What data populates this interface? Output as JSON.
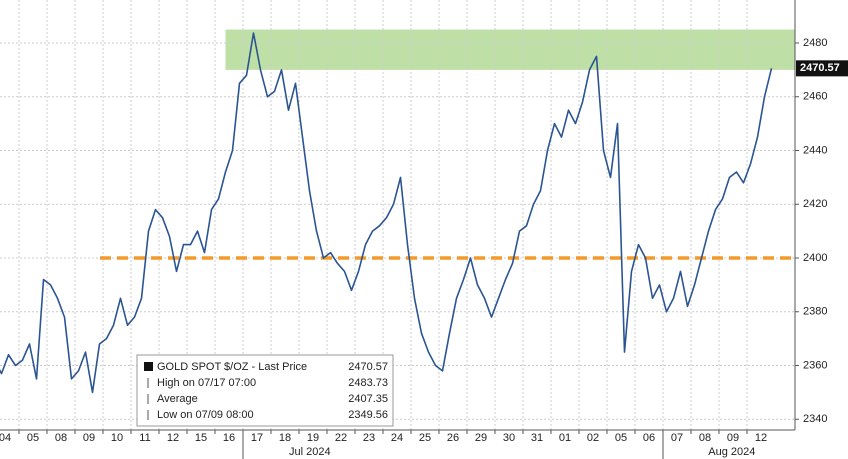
{
  "chart_data": {
    "type": "line",
    "categories": [
      "04",
      null,
      null,
      null,
      "05",
      null,
      null,
      null,
      "08",
      null,
      null,
      null,
      "09",
      null,
      null,
      null,
      "10",
      null,
      null,
      null,
      "11",
      null,
      null,
      null,
      "12",
      null,
      null,
      null,
      "15",
      null,
      null,
      null,
      "16",
      null,
      null,
      null,
      "17",
      null,
      null,
      null,
      "18",
      null,
      null,
      null,
      "19",
      null,
      null,
      null,
      "22",
      null,
      null,
      null,
      "23",
      null,
      null,
      null,
      "24",
      null,
      null,
      null,
      "25",
      null,
      null,
      null,
      "26",
      null,
      null,
      null,
      "29",
      null,
      null,
      null,
      "30",
      null,
      null,
      null,
      "31",
      null,
      null,
      null,
      "01",
      null,
      null,
      null,
      "02",
      null,
      null,
      null,
      "05",
      null,
      null,
      null,
      "06",
      null,
      null,
      null,
      "07",
      null,
      null,
      null,
      "08",
      null,
      null,
      null,
      "09",
      null,
      null,
      null,
      "12",
      null,
      null,
      null
    ],
    "months": [
      {
        "label": "Jul 2024",
        "at": 36
      },
      {
        "label": "Aug 2024",
        "at": 96
      }
    ],
    "series": [
      {
        "name": "GOLD SPOT $/OZ - Last Price",
        "color": "#2b5592",
        "values": [
          2362,
          2357,
          2364,
          2360,
          2362,
          2368,
          2355,
          2392,
          2390,
          2385,
          2378,
          2355,
          2358,
          2365,
          2350,
          2368,
          2370,
          2375,
          2385,
          2375,
          2378,
          2385,
          2410,
          2418,
          2415,
          2408,
          2395,
          2405,
          2405,
          2410,
          2402,
          2418,
          2422,
          2432,
          2440,
          2465,
          2468,
          2483.73,
          2470,
          2460,
          2462,
          2470,
          2455,
          2465,
          2445,
          2425,
          2410,
          2400,
          2402,
          2398,
          2395,
          2388,
          2395,
          2405,
          2410,
          2412,
          2415,
          2420,
          2430,
          2405,
          2385,
          2372,
          2365,
          2360,
          2358,
          2372,
          2385,
          2392,
          2400,
          2390,
          2385,
          2378,
          2385,
          2392,
          2398,
          2410,
          2412,
          2420,
          2425,
          2440,
          2450,
          2445,
          2455,
          2450,
          2458,
          2470,
          2475,
          2440,
          2430,
          2450,
          2365,
          2395,
          2405,
          2400,
          2385,
          2390,
          2380,
          2385,
          2395,
          2382,
          2390,
          2400,
          2410,
          2418,
          2422,
          2430,
          2432,
          2428,
          2435,
          2445,
          2460,
          2470.57
        ]
      }
    ],
    "legend": [
      {
        "label": "GOLD SPOT $/OZ - Last Price",
        "value": 2470.57
      },
      {
        "label": "High on 07/17 07:00",
        "value": 2483.73
      },
      {
        "label": "Average",
        "value": 2407.35
      },
      {
        "label": "Low on 07/09 08:00",
        "value": 2349.56
      }
    ],
    "reference_lines": [
      {
        "value": 2400,
        "color": "#f39a2b",
        "style": "dashed"
      }
    ],
    "bands": [
      {
        "from": 2470,
        "to": 2485,
        "color": "#bedfa6",
        "start": 33
      }
    ],
    "ylim": [
      2336,
      2496
    ],
    "yticks": [
      2340,
      2360,
      2380,
      2400,
      2420,
      2440,
      2460,
      2480
    ],
    "grid": true
  }
}
